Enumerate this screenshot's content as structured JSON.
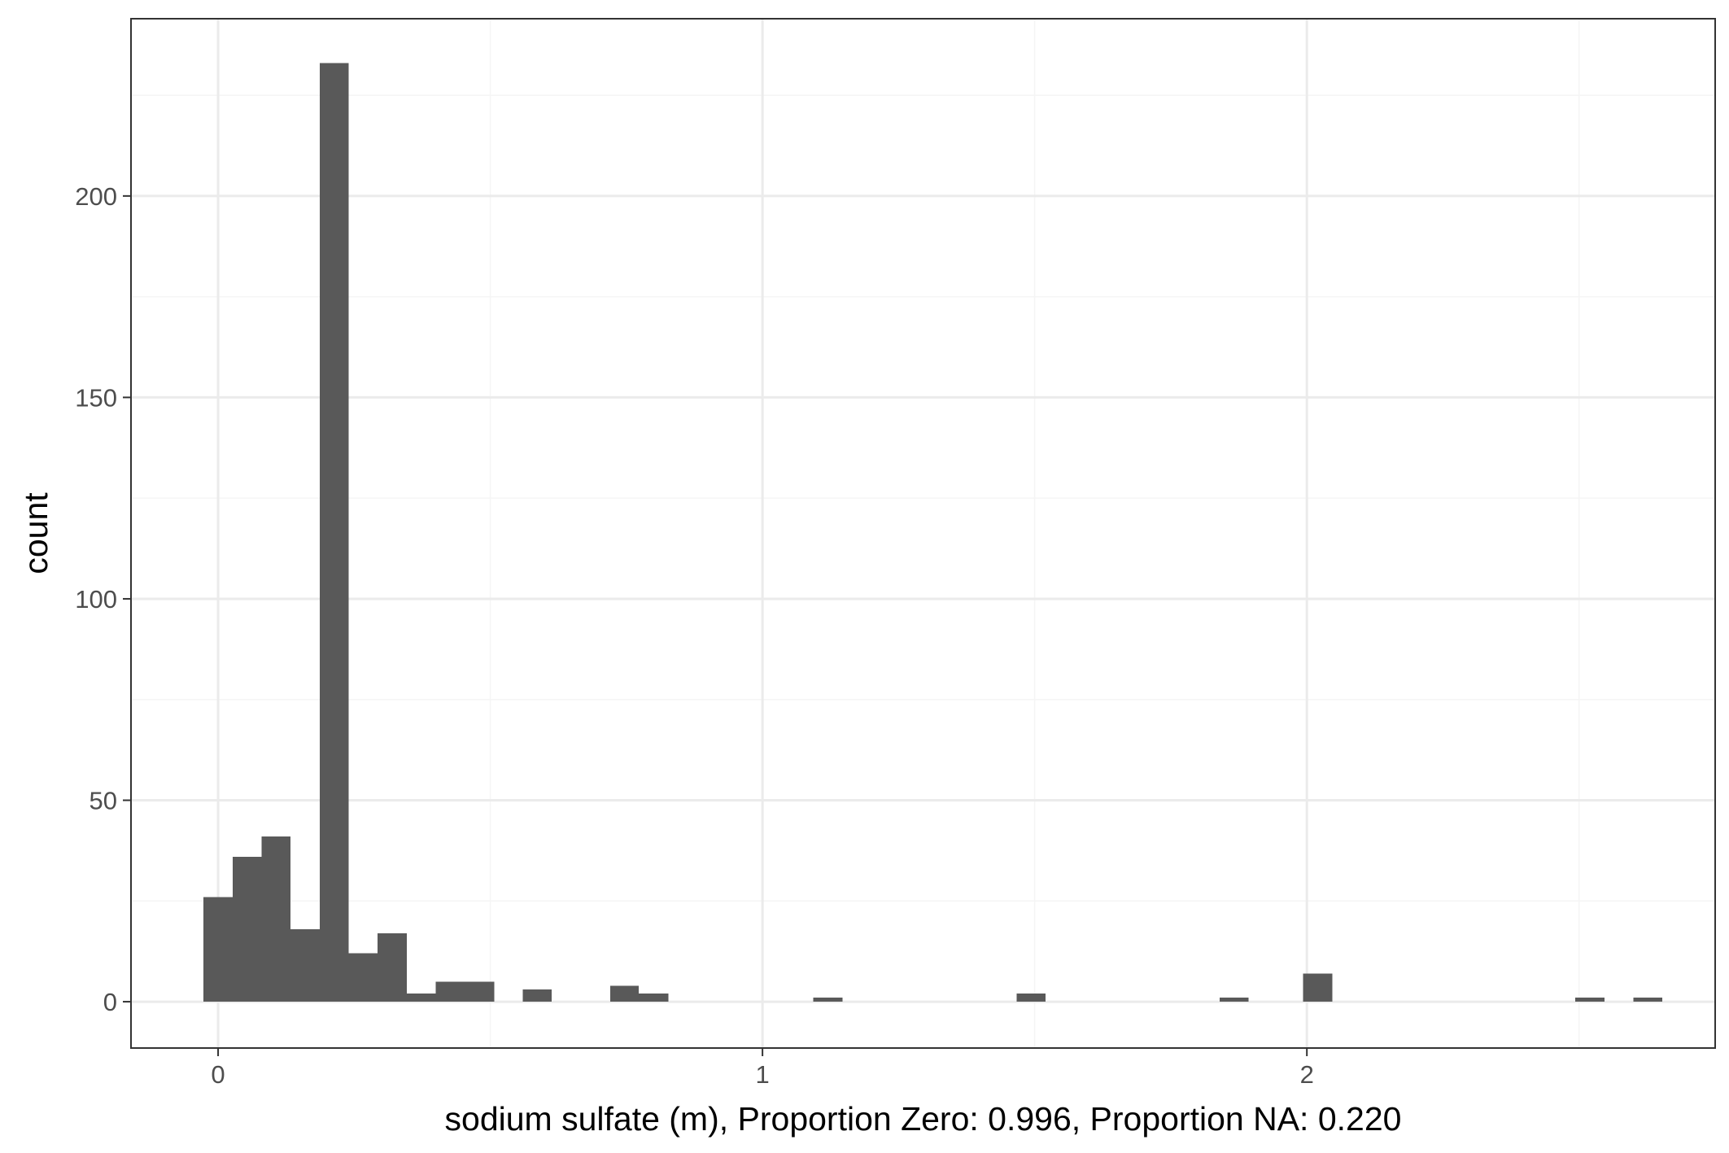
{
  "chart_data": {
    "type": "bar",
    "subtype": "histogram",
    "xlabel": "sodium sulfate (m), Proportion Zero: 0.996, Proportion NA: 0.220",
    "ylabel": "count",
    "xlim": [
      -0.16,
      2.75
    ],
    "ylim": [
      -11.5,
      244
    ],
    "x_ticks": [
      0,
      1,
      2
    ],
    "y_ticks": [
      0,
      50,
      100,
      150,
      200
    ],
    "x_minor_ticks": [
      0.5,
      1.5,
      2.5
    ],
    "y_minor_ticks": [
      25,
      75,
      125,
      175,
      225
    ],
    "bin_width": 0.0533,
    "bins": [
      {
        "x0": -0.027,
        "x1": 0.027,
        "count": 26
      },
      {
        "x0": 0.027,
        "x1": 0.08,
        "count": 36
      },
      {
        "x0": 0.08,
        "x1": 0.133,
        "count": 41
      },
      {
        "x0": 0.133,
        "x1": 0.187,
        "count": 18
      },
      {
        "x0": 0.187,
        "x1": 0.24,
        "count": 233
      },
      {
        "x0": 0.24,
        "x1": 0.293,
        "count": 12
      },
      {
        "x0": 0.293,
        "x1": 0.347,
        "count": 17
      },
      {
        "x0": 0.347,
        "x1": 0.4,
        "count": 2
      },
      {
        "x0": 0.4,
        "x1": 0.453,
        "count": 5
      },
      {
        "x0": 0.453,
        "x1": 0.507,
        "count": 5
      },
      {
        "x0": 0.56,
        "x1": 0.613,
        "count": 3
      },
      {
        "x0": 0.72,
        "x1": 0.773,
        "count": 4
      },
      {
        "x0": 0.773,
        "x1": 0.827,
        "count": 2
      },
      {
        "x0": 1.093,
        "x1": 1.147,
        "count": 1
      },
      {
        "x0": 1.467,
        "x1": 1.52,
        "count": 2
      },
      {
        "x0": 1.84,
        "x1": 1.893,
        "count": 1
      },
      {
        "x0": 1.993,
        "x1": 2.047,
        "count": 7
      },
      {
        "x0": 2.493,
        "x1": 2.547,
        "count": 1
      },
      {
        "x0": 2.6,
        "x1": 2.653,
        "count": 1
      }
    ],
    "grid": true,
    "colors": {
      "bar": "#595959",
      "grid_major": "#ebebeb",
      "grid_minor": "#f5f5f5",
      "panel_border": "#333333",
      "tick_text": "#4d4d4d"
    }
  }
}
